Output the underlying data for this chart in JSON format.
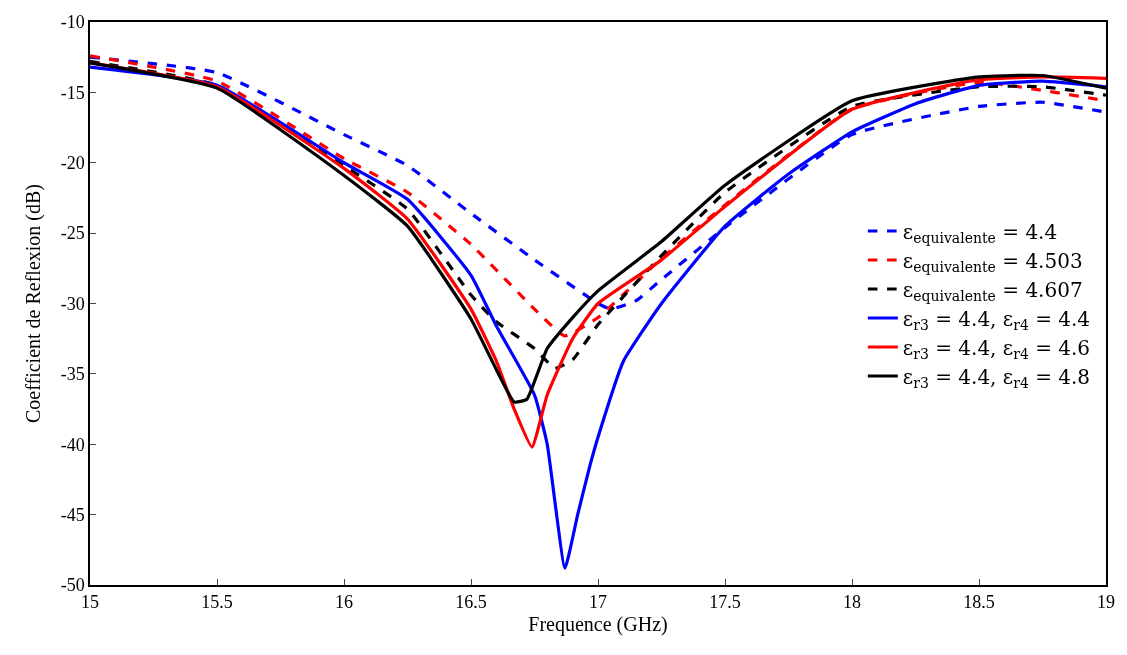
{
  "chart_data": {
    "type": "line",
    "xlabel": "Frequence (GHz)",
    "ylabel": "Coefficient de Reflexion (dB)",
    "xlim": [
      15,
      19
    ],
    "xticks": [
      15,
      15.5,
      16,
      16.5,
      17,
      17.5,
      18,
      18.5,
      19
    ],
    "ylim": [
      -50,
      -10
    ],
    "yticks": [
      -50,
      -45,
      -40,
      -35,
      -30,
      -25,
      -20,
      -15,
      -10
    ],
    "grid": false,
    "legend": "right",
    "marker": "none",
    "series": [
      {
        "name": "ε$_{equivalente}$ = 4.4",
        "color": "#0000ff",
        "line_style": "dashed",
        "x": [
          15,
          15.5,
          16,
          16.25,
          16.5,
          16.75,
          17,
          17.05,
          17.15,
          17.25,
          17.5,
          18,
          18.5,
          18.75,
          19
        ],
        "values": [
          -12.5,
          -13.6,
          -18.0,
          -20.2,
          -23.6,
          -26.9,
          -30.0,
          -30.4,
          -29.8,
          -28.3,
          -24.6,
          -18.0,
          -16.0,
          -15.7,
          -16.4
        ]
      },
      {
        "name": "ε$_{equivalente}$ = 4.503",
        "color": "#ff0000",
        "line_style": "dashed",
        "x": [
          15,
          15.5,
          16,
          16.25,
          16.5,
          16.75,
          16.87,
          17,
          17.25,
          17.5,
          18,
          18.5,
          19
        ],
        "values": [
          -12.4,
          -14.2,
          -19.7,
          -22.1,
          -25.8,
          -30.4,
          -32.3,
          -31.0,
          -26.8,
          -23.0,
          -16.2,
          -14.3,
          -15.6
        ]
      },
      {
        "name": "ε$_{equivalente}$ = 4.607",
        "color": "#000000",
        "line_style": "dashed",
        "x": [
          15,
          15.5,
          16,
          16.25,
          16.5,
          16.6,
          16.75,
          16.83,
          16.9,
          17,
          17.25,
          17.5,
          18,
          18.5,
          18.75,
          19
        ],
        "values": [
          -12.8,
          -14.5,
          -20.2,
          -23.3,
          -29.4,
          -31.3,
          -33.2,
          -34.6,
          -34.0,
          -31.5,
          -26.6,
          -22.1,
          -16.0,
          -14.6,
          -14.6,
          -15.2
        ]
      },
      {
        "name": "ε$_{r3}$ = 4.4, ε$_{r4}$ = 4.4",
        "color": "#0000ff",
        "line_style": "solid",
        "x": [
          15,
          15.5,
          16,
          16.25,
          16.5,
          16.6,
          16.75,
          16.8,
          16.87,
          16.92,
          16.97,
          17,
          17.1,
          17.25,
          17.5,
          17.75,
          18,
          18.25,
          18.5,
          18.75,
          19
        ],
        "values": [
          -13.2,
          -14.5,
          -20.0,
          -22.6,
          -28.0,
          -31.6,
          -36.5,
          -40.0,
          -48.8,
          -45.0,
          -41.4,
          -39.5,
          -34.1,
          -30.0,
          -24.5,
          -20.8,
          -17.8,
          -15.8,
          -14.5,
          -14.2,
          -14.6
        ]
      },
      {
        "name": "ε$_{r3}$ = 4.4, ε$_{r4}$ = 4.6",
        "color": "#ff0000",
        "line_style": "solid",
        "x": [
          15,
          15.5,
          16,
          16.25,
          16.5,
          16.6,
          16.67,
          16.74,
          16.8,
          16.9,
          17,
          17.25,
          17.5,
          18,
          18.5,
          18.75,
          19
        ],
        "values": [
          -12.9,
          -14.6,
          -20.4,
          -24.0,
          -30.4,
          -34.1,
          -37.5,
          -40.2,
          -36.5,
          -32.5,
          -30.0,
          -26.9,
          -23.1,
          -16.2,
          -14.1,
          -13.9,
          -14.0
        ]
      },
      {
        "name": "ε$_{r3}$ = 4.4, ε$_{r4}$ = 4.8",
        "color": "#000000",
        "line_style": "solid",
        "x": [
          15,
          15.5,
          16,
          16.25,
          16.5,
          16.6,
          16.67,
          16.72,
          16.8,
          16.9,
          17,
          17.25,
          17.5,
          18,
          18.5,
          18.75,
          19
        ],
        "values": [
          -12.9,
          -14.7,
          -20.9,
          -24.5,
          -31.1,
          -34.7,
          -37.0,
          -36.8,
          -33.2,
          -31.0,
          -29.1,
          -25.6,
          -21.6,
          -15.6,
          -13.9,
          -13.8,
          -14.7
        ]
      }
    ]
  }
}
